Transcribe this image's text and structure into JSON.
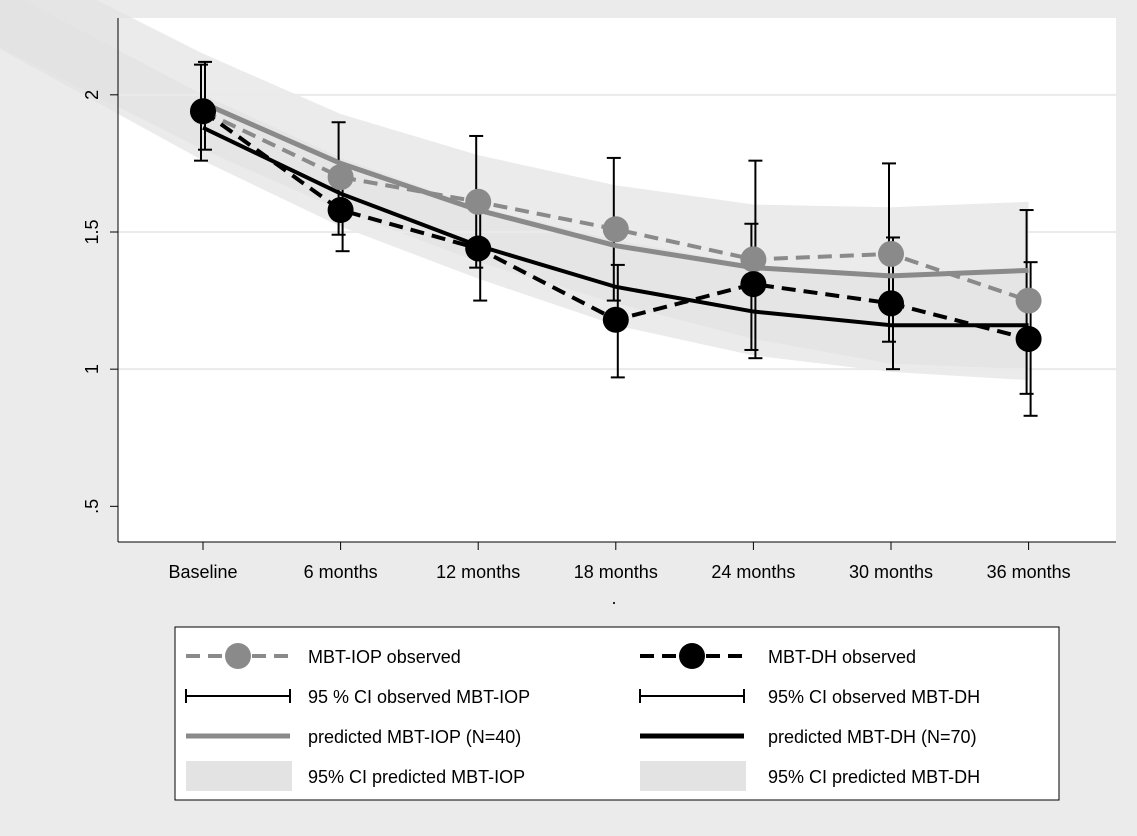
{
  "chart_data": {
    "type": "line",
    "title": "",
    "xlabel": ".",
    "ylabel": "",
    "categories": [
      "Baseline",
      "6 months",
      "12 months",
      "18 months",
      "24 months",
      "30 months",
      "36 months"
    ],
    "y_ticks": [
      0.5,
      1,
      1.5,
      2
    ],
    "y_tick_labels": [
      ".5",
      "1",
      "1.5",
      "2"
    ],
    "ylim": [
      0.37,
      2.28
    ],
    "grid": true,
    "legend_position": "bottom",
    "colors": {
      "iop": "#8a8a8a",
      "dh": "#000000",
      "band": "#e3e3e3",
      "plot_bg": "#ffffff",
      "page_bg": "#ebebeb"
    },
    "series": [
      {
        "name": "MBT-IOP observed",
        "kind": "observed",
        "group": "iop",
        "values": [
          1.94,
          1.7,
          1.61,
          1.51,
          1.4,
          1.42,
          1.25
        ]
      },
      {
        "name": "MBT-DH observed",
        "kind": "observed",
        "group": "dh",
        "values": [
          1.94,
          1.58,
          1.44,
          1.18,
          1.31,
          1.24,
          1.11
        ]
      },
      {
        "name": "95 % CI observed MBT-IOP",
        "kind": "ci_observed",
        "group": "iop",
        "lower": [
          1.76,
          1.49,
          1.37,
          1.25,
          1.07,
          1.1,
          0.91
        ],
        "upper": [
          2.11,
          1.9,
          1.85,
          1.77,
          1.53,
          1.75,
          1.58
        ]
      },
      {
        "name": "95% CI observed MBT-DH",
        "kind": "ci_observed",
        "group": "dh",
        "lower": [
          1.8,
          1.43,
          1.25,
          0.97,
          1.04,
          1.0,
          0.83
        ],
        "upper": [
          2.12,
          1.73,
          1.63,
          1.38,
          1.76,
          1.48,
          1.39
        ]
      },
      {
        "name": "predicted MBT-IOP (N=40)",
        "kind": "predicted",
        "group": "iop",
        "values": [
          1.97,
          1.75,
          1.58,
          1.45,
          1.37,
          1.34,
          1.36
        ]
      },
      {
        "name": "predicted MBT-DH (N=70)",
        "kind": "predicted",
        "group": "dh",
        "values": [
          1.88,
          1.64,
          1.45,
          1.3,
          1.21,
          1.16,
          1.16
        ]
      },
      {
        "name": "95% CI predicted MBT-IOP",
        "kind": "ci_predicted",
        "group": "iop",
        "lower": [
          1.8,
          1.58,
          1.39,
          1.24,
          1.11,
          1.02,
          1.0
        ],
        "upper": [
          2.15,
          1.93,
          1.78,
          1.67,
          1.6,
          1.59,
          1.61
        ]
      },
      {
        "name": "95% CI predicted MBT-DH",
        "kind": "ci_predicted",
        "group": "dh",
        "lower": [
          1.76,
          1.52,
          1.33,
          1.16,
          1.05,
          0.99,
          0.96
        ],
        "upper": [
          2.0,
          1.77,
          1.59,
          1.47,
          1.38,
          1.35,
          1.37
        ]
      }
    ],
    "legend": [
      "MBT-IOP observed",
      "MBT-DH observed",
      "95 % CI observed MBT-IOP",
      "95% CI observed MBT-DH",
      "predicted MBT-IOP (N=40)",
      "predicted MBT-DH (N=70)",
      "95% CI predicted MBT-IOP",
      "95% CI predicted MBT-DH"
    ]
  }
}
